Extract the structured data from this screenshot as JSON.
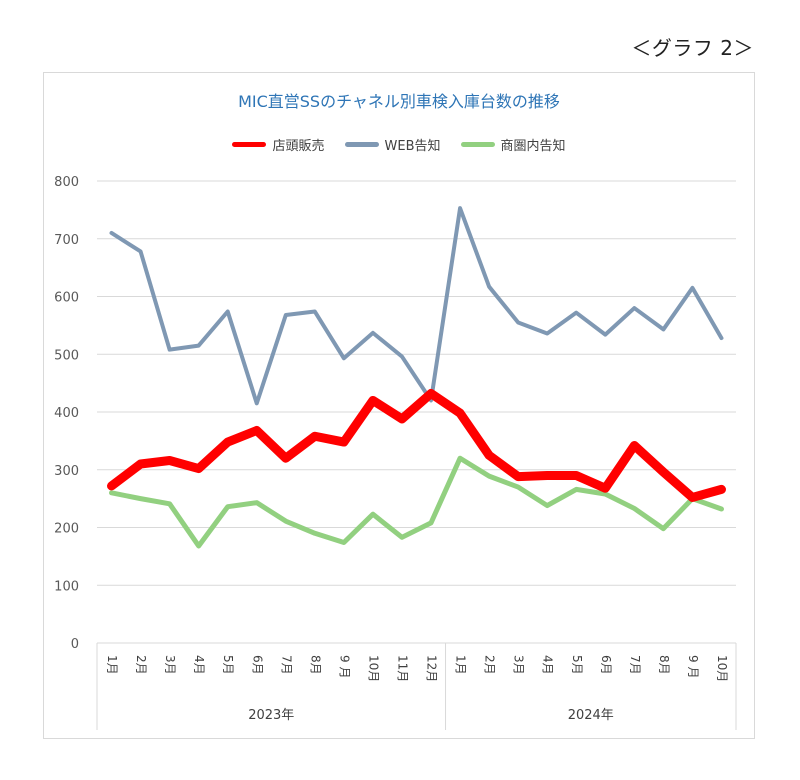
{
  "graph_label": "＜グラフ 2＞",
  "chart_data": {
    "type": "line",
    "title": "MIC直営SSのチャネル別車検入庫台数の推移",
    "ylim": [
      0,
      800
    ],
    "yticks": [
      0,
      100,
      200,
      300,
      400,
      500,
      600,
      700,
      800
    ],
    "grid": true,
    "legend_position": "top",
    "categories": [
      "1月",
      "2月",
      "3月",
      "4月",
      "5月",
      "6月",
      "7月",
      "8月",
      "9 月",
      "10月",
      "11月",
      "12月",
      "1月",
      "2月",
      "3月",
      "4月",
      "5月",
      "6月",
      "7月",
      "8月",
      "9 月",
      "10月"
    ],
    "year_groups": [
      {
        "label": "2023年",
        "count": 12
      },
      {
        "label": "2024年",
        "count": 10
      }
    ],
    "series": [
      {
        "name": "店頭販売",
        "color": "#ff0000",
        "values": [
          272,
          310,
          316,
          302,
          348,
          368,
          320,
          358,
          348,
          420,
          388,
          432,
          398,
          325,
          288,
          290,
          290,
          268,
          342,
          296,
          252,
          266
        ]
      },
      {
        "name": "WEB告知",
        "color": "#7f98b3",
        "values": [
          710,
          678,
          508,
          515,
          574,
          415,
          568,
          574,
          493,
          537,
          496,
          420,
          753,
          617,
          555,
          536,
          572,
          534,
          580,
          543,
          615,
          528
        ]
      },
      {
        "name": "商圏内告知",
        "color": "#92d080",
        "values": [
          260,
          250,
          241,
          168,
          236,
          243,
          211,
          190,
          174,
          223,
          183,
          208,
          320,
          289,
          270,
          238,
          266,
          258,
          233,
          198,
          250,
          232
        ]
      }
    ]
  }
}
